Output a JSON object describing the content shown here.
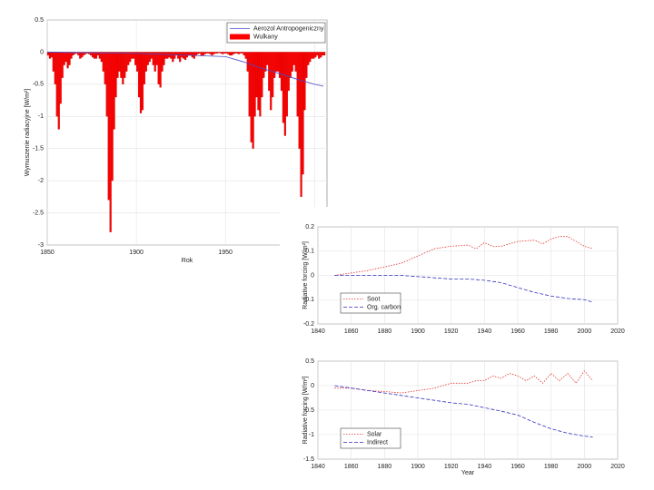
{
  "chart_data": [
    {
      "type": "bar",
      "y_label": "Wymuszenie radiacyjne [W/m²]",
      "x_label": "Rok",
      "xlim": [
        1850,
        2007
      ],
      "xticks": [
        1850,
        1900,
        1950,
        2000
      ],
      "ylim": [
        -3,
        0.5
      ],
      "yticks": [
        0.5,
        0,
        -0.5,
        -1,
        -1.5,
        -2,
        -2.5,
        -3
      ],
      "grid": true,
      "legend": "upper right",
      "series": [
        {
          "name": "Aerozol Antropogeniczny",
          "type": "line",
          "color": "#4a4ac8",
          "linestyle": "solid",
          "x": [
            1850,
            1900,
            1930,
            1950,
            1960,
            1970,
            1980,
            1990,
            2000,
            2005
          ],
          "values": [
            0,
            -0.02,
            -0.05,
            -0.07,
            -0.15,
            -0.25,
            -0.33,
            -0.42,
            -0.5,
            -0.53
          ]
        },
        {
          "name": "Wulkany",
          "type": "bar",
          "color": "#ff0000",
          "x": [
            1850,
            1851,
            1852,
            1853,
            1854,
            1855,
            1856,
            1857,
            1858,
            1859,
            1860,
            1861,
            1862,
            1863,
            1864,
            1865,
            1866,
            1867,
            1868,
            1869,
            1870,
            1871,
            1872,
            1873,
            1874,
            1875,
            1876,
            1877,
            1878,
            1879,
            1880,
            1881,
            1882,
            1883,
            1884,
            1885,
            1886,
            1887,
            1888,
            1889,
            1890,
            1891,
            1892,
            1893,
            1894,
            1895,
            1896,
            1897,
            1898,
            1899,
            1900,
            1901,
            1902,
            1903,
            1904,
            1905,
            1906,
            1907,
            1908,
            1909,
            1910,
            1911,
            1912,
            1913,
            1914,
            1915,
            1916,
            1917,
            1918,
            1919,
            1920,
            1921,
            1922,
            1923,
            1924,
            1925,
            1926,
            1927,
            1928,
            1929,
            1930,
            1931,
            1932,
            1933,
            1934,
            1935,
            1936,
            1937,
            1938,
            1939,
            1940,
            1941,
            1942,
            1943,
            1944,
            1945,
            1946,
            1947,
            1948,
            1949,
            1950,
            1951,
            1952,
            1953,
            1954,
            1955,
            1956,
            1957,
            1958,
            1959,
            1960,
            1961,
            1962,
            1963,
            1964,
            1965,
            1966,
            1967,
            1968,
            1969,
            1970,
            1971,
            1972,
            1973,
            1974,
            1975,
            1976,
            1977,
            1978,
            1979,
            1980,
            1981,
            1982,
            1983,
            1984,
            1985,
            1986,
            1987,
            1988,
            1989,
            1990,
            1991,
            1992,
            1993,
            1994,
            1995,
            1996,
            1997,
            1998,
            1999,
            2000,
            2001,
            2002,
            2003,
            2004,
            2005
          ],
          "values": [
            -0.05,
            -0.1,
            -0.08,
            -0.3,
            -0.5,
            -1.0,
            -1.2,
            -0.8,
            -0.4,
            -0.2,
            -0.15,
            -0.25,
            -0.2,
            -0.1,
            -0.05,
            -0.03,
            -0.02,
            -0.05,
            -0.1,
            -0.08,
            -0.05,
            -0.03,
            -0.02,
            -0.03,
            -0.05,
            -0.08,
            -0.1,
            -0.1,
            -0.05,
            -0.1,
            -0.15,
            -0.3,
            -0.5,
            -1.0,
            -2.3,
            -2.8,
            -2.0,
            -1.2,
            -0.7,
            -0.4,
            -0.3,
            -0.4,
            -0.5,
            -0.4,
            -0.3,
            -0.2,
            -0.15,
            -0.1,
            -0.1,
            -0.2,
            -0.3,
            -0.7,
            -0.95,
            -0.9,
            -0.5,
            -0.3,
            -0.2,
            -0.15,
            -0.1,
            -0.2,
            -0.3,
            -0.2,
            -0.5,
            -0.55,
            -0.3,
            -0.2,
            -0.1,
            -0.1,
            -0.08,
            -0.1,
            -0.15,
            -0.1,
            -0.05,
            -0.1,
            -0.15,
            -0.08,
            -0.1,
            -0.12,
            -0.08,
            -0.05,
            -0.05,
            -0.08,
            -0.1,
            -0.05,
            -0.03,
            -0.02,
            -0.05,
            -0.05,
            -0.03,
            -0.02,
            -0.02,
            -0.03,
            -0.05,
            -0.03,
            -0.02,
            -0.02,
            -0.01,
            -0.02,
            -0.03,
            -0.02,
            -0.02,
            -0.03,
            -0.05,
            -0.05,
            -0.03,
            -0.02,
            -0.02,
            -0.03,
            -0.02,
            -0.02,
            -0.05,
            -0.1,
            -0.3,
            -1.0,
            -1.4,
            -1.5,
            -1.0,
            -0.7,
            -0.9,
            -1.0,
            -0.7,
            -0.4,
            -0.3,
            -0.2,
            -0.6,
            -0.9,
            -0.7,
            -0.4,
            -0.3,
            -0.3,
            -0.4,
            -0.6,
            -1.1,
            -1.3,
            -1.0,
            -0.6,
            -0.4,
            -0.3,
            -0.2,
            -0.3,
            -1.0,
            -1.5,
            -2.25,
            -1.9,
            -0.9,
            -0.4,
            -0.2,
            -0.15,
            -0.1,
            -0.1,
            -0.08,
            -0.05,
            -0.1,
            -0.08,
            -0.05,
            -0.05
          ]
        }
      ]
    },
    {
      "type": "line",
      "y_label": "Radiative forcing [W/m²]",
      "xlim": [
        1840,
        2020
      ],
      "xticks": [
        1840,
        1860,
        1880,
        1900,
        1920,
        1940,
        1960,
        1980,
        2000,
        2020
      ],
      "ylim": [
        -0.2,
        0.2
      ],
      "yticks": [
        0.2,
        0.1,
        0,
        -0.1,
        -0.2
      ],
      "grid": true,
      "legend": "lower left",
      "series": [
        {
          "name": "Soot",
          "color": "#e03030",
          "linestyle": "dotted",
          "x": [
            1850,
            1860,
            1870,
            1880,
            1890,
            1900,
            1910,
            1920,
            1930,
            1935,
            1940,
            1945,
            1950,
            1960,
            1970,
            1975,
            1980,
            1985,
            1990,
            1995,
            2000,
            2005
          ],
          "values": [
            0,
            0.01,
            0.02,
            0.035,
            0.05,
            0.08,
            0.11,
            0.12,
            0.125,
            0.11,
            0.135,
            0.12,
            0.12,
            0.14,
            0.145,
            0.13,
            0.15,
            0.16,
            0.16,
            0.14,
            0.12,
            0.11
          ]
        },
        {
          "name": "Org. carbon",
          "color": "#3030c0",
          "linestyle": "dashed",
          "x": [
            1850,
            1870,
            1880,
            1890,
            1900,
            1910,
            1920,
            1930,
            1940,
            1950,
            1960,
            1970,
            1980,
            1990,
            2000,
            2005
          ],
          "values": [
            0,
            0,
            0,
            0,
            -0.005,
            -0.01,
            -0.015,
            -0.015,
            -0.02,
            -0.03,
            -0.05,
            -0.07,
            -0.085,
            -0.095,
            -0.1,
            -0.11
          ]
        }
      ]
    },
    {
      "type": "line",
      "y_label": "Radiative forcing [W/m²]",
      "x_label": "Year",
      "xlim": [
        1840,
        2020
      ],
      "xticks": [
        1840,
        1860,
        1880,
        1900,
        1920,
        1940,
        1960,
        1980,
        2000,
        2020
      ],
      "ylim": [
        -1.5,
        0.5
      ],
      "yticks": [
        0.5,
        0,
        -0.5,
        -1,
        -1.5
      ],
      "grid": true,
      "legend": "lower left",
      "series": [
        {
          "name": "Solar",
          "color": "#e03030",
          "linestyle": "dotted",
          "x": [
            1850,
            1860,
            1870,
            1880,
            1890,
            1900,
            1910,
            1920,
            1930,
            1935,
            1940,
            1945,
            1950,
            1955,
            1960,
            1965,
            1970,
            1975,
            1980,
            1985,
            1990,
            1995,
            2000,
            2005
          ],
          "values": [
            -0.05,
            -0.05,
            -0.1,
            -0.12,
            -0.15,
            -0.1,
            -0.05,
            0.05,
            0.05,
            0.1,
            0.1,
            0.2,
            0.15,
            0.25,
            0.2,
            0.1,
            0.2,
            0.05,
            0.25,
            0.1,
            0.25,
            0.05,
            0.3,
            0.1
          ]
        },
        {
          "name": "Indirect",
          "color": "#3030c0",
          "linestyle": "dashed",
          "x": [
            1850,
            1860,
            1870,
            1880,
            1890,
            1900,
            1910,
            1920,
            1930,
            1940,
            1950,
            1960,
            1970,
            1980,
            1990,
            2000,
            2005
          ],
          "values": [
            0,
            -0.05,
            -0.1,
            -0.15,
            -0.2,
            -0.25,
            -0.3,
            -0.35,
            -0.38,
            -0.45,
            -0.52,
            -0.6,
            -0.75,
            -0.88,
            -0.97,
            -1.03,
            -1.05
          ]
        }
      ]
    }
  ]
}
